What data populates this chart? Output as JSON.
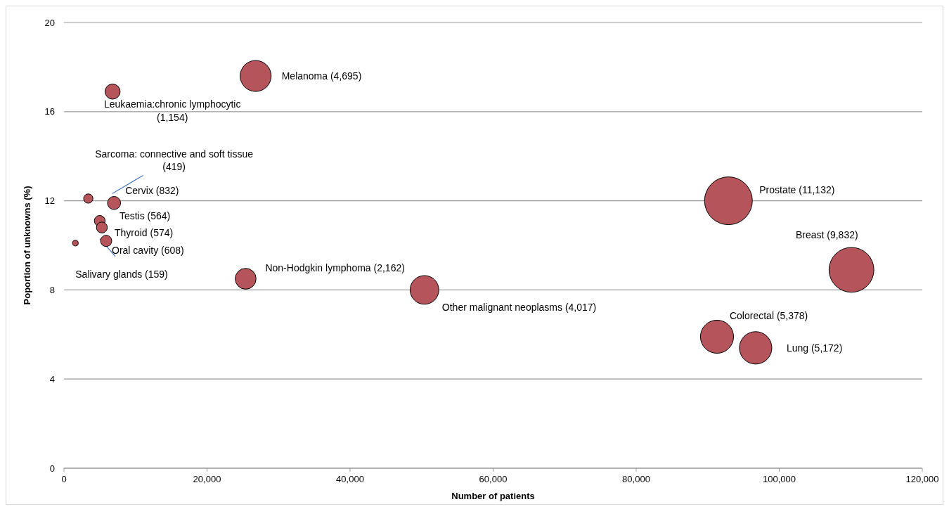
{
  "chart_data": {
    "type": "bubble",
    "xlabel": "Number of patients",
    "ylabel": "Poportion of unknowns (%)",
    "xlim": [
      0,
      120000
    ],
    "xticks": [
      {
        "value": 0,
        "label": "0"
      },
      {
        "value": 20000,
        "label": "20,000"
      },
      {
        "value": 40000,
        "label": "40,000"
      },
      {
        "value": 60000,
        "label": "60,000"
      },
      {
        "value": 80000,
        "label": "80,000"
      },
      {
        "value": 100000,
        "label": "100,000"
      },
      {
        "value": 120000,
        "label": "120,000"
      }
    ],
    "ylim": [
      0,
      20
    ],
    "yticks": [
      0,
      4,
      8,
      12,
      16,
      20
    ],
    "grid": "y",
    "series": [
      {
        "color": "#b5555b",
        "x": [
          26800,
          6800,
          3400,
          7000,
          5000,
          5300,
          5900,
          1600,
          25400,
          50400,
          92900,
          110100,
          91300,
          96700
        ],
        "values": [
          17.6,
          16.9,
          12.1,
          11.9,
          11.1,
          10.8,
          10.2,
          10.1,
          8.5,
          8.0,
          12.0,
          8.9,
          5.9,
          5.4
        ],
        "sizes": [
          0.42,
          0.1,
          0.038,
          0.075,
          0.051,
          0.052,
          0.055,
          0.014,
          0.19,
          0.36,
          1,
          0.88,
          0.48,
          0.46
        ]
      }
    ],
    "annotations": [
      "Melanoma (4,695)",
      "Leukaemia:chronic lymphocytic (1,154)",
      "Sarcoma: connective and soft tissue (419)",
      "Cervix (832)",
      "Testis (564)",
      "Thyroid (574)",
      "Oral cavity (608)",
      "Salivary glands (159)",
      "Non-Hodgkin lymphoma (2,162)",
      "Other malignant neoplasms (4,017)",
      "Prostate (11,132)",
      "Breast (9,832)",
      "Colorectal (5,378)",
      "Lung (5,172)"
    ]
  }
}
